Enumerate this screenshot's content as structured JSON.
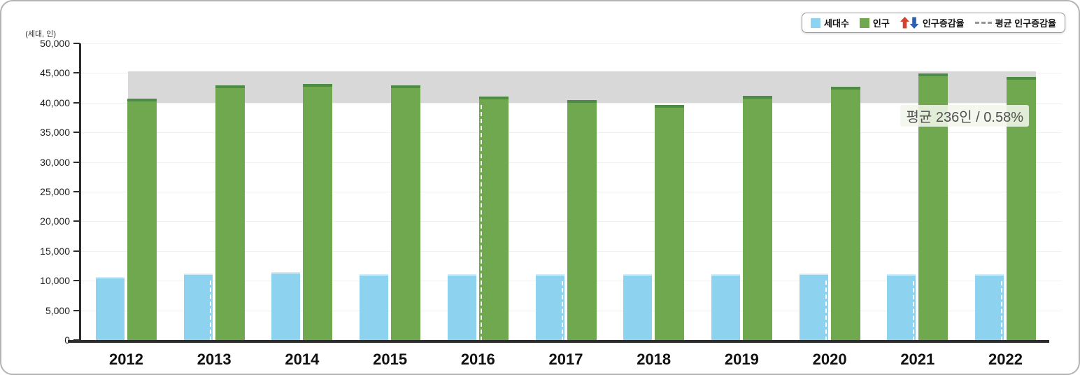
{
  "unit_label": "(세대, 인)",
  "legend": {
    "items": [
      {
        "label": "세대수",
        "icon": "blue-square"
      },
      {
        "label": "인구",
        "icon": "green-square"
      },
      {
        "label": "인구증감율",
        "icon": "up-down-arrows"
      },
      {
        "label": "평균 인구증감율",
        "icon": "gray-dashes"
      }
    ]
  },
  "colors": {
    "households": "#8dd2ee",
    "households_top": "#cfeaf7",
    "population": "#6fa84f",
    "population_cap": "#4e8b44",
    "band": "#d8d8d8",
    "arrow_up": "#d6402c",
    "arrow_down": "#2e5fae",
    "axis": "#2d2d2d"
  },
  "chart_data": {
    "type": "bar",
    "title": "",
    "categories": [
      "2012",
      "2013",
      "2014",
      "2015",
      "2016",
      "2017",
      "2018",
      "2019",
      "2020",
      "2021",
      "2022"
    ],
    "series": [
      {
        "name": "세대수",
        "color": "#8dd2ee",
        "values": [
          10600,
          11200,
          11500,
          11100,
          11100,
          11100,
          11100,
          11100,
          11200,
          11100,
          11100
        ]
      },
      {
        "name": "인구",
        "color": "#6fa84f",
        "values": [
          40700,
          42900,
          43200,
          42900,
          41000,
          40400,
          39600,
          41200,
          42700,
          44900,
          44400
        ]
      }
    ],
    "xlabel": "",
    "ylabel": "(세대, 인)",
    "ylim": [
      0,
      50000
    ],
    "ytick_step": 5000,
    "grid": true,
    "legend_position": "top-right",
    "average_band": {
      "from": 40000,
      "to": 45300,
      "color": "#d8d8d8",
      "label": "평균 236인 / 0.58%"
    },
    "overlay_dashes": {
      "blue_right_years": [
        "2013",
        "2017",
        "2020",
        "2021",
        "2022"
      ],
      "green_left_years": [
        "2016"
      ]
    }
  }
}
